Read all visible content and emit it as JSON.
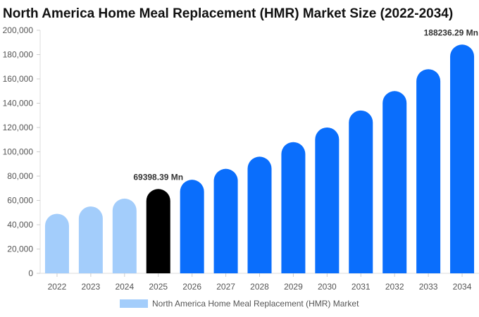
{
  "chart_data": {
    "type": "bar",
    "title": "North America Home Meal Replacement (HMR) Market Size (2022-2034)",
    "categories": [
      "2022",
      "2023",
      "2024",
      "2025",
      "2026",
      "2027",
      "2028",
      "2029",
      "2030",
      "2031",
      "2032",
      "2033",
      "2034"
    ],
    "series": [
      {
        "name": "North America Home Meal Replacement (HMR) Market",
        "values": [
          49000,
          55000,
          61500,
          69398.39,
          77000,
          86000,
          96000,
          108000,
          120000,
          134000,
          150000,
          168000,
          188236.29
        ]
      }
    ],
    "data_labels": [
      {
        "category": "2025",
        "text": "69398.39 Mn"
      },
      {
        "category": "2034",
        "text": "188236.29 Mn"
      }
    ],
    "ylim": [
      0,
      200000
    ],
    "yticks": [
      0,
      20000,
      40000,
      60000,
      80000,
      100000,
      120000,
      140000,
      160000,
      180000,
      200000
    ],
    "ytick_labels": [
      "0",
      "20,000",
      "40,000",
      "60,000",
      "80,000",
      "100,000",
      "120,000",
      "140,000",
      "160,000",
      "180,000",
      "200,000"
    ],
    "xlabel": "",
    "ylabel": "",
    "grid": false,
    "legend_position": "bottom",
    "bar_colors": {
      "historical": "#a3cdfb",
      "current": "#000000",
      "forecast": "#0a6efc"
    },
    "historical_categories": [
      "2022",
      "2023",
      "2024"
    ],
    "current_category": "2025",
    "legend_color": "#a3cdfb"
  }
}
